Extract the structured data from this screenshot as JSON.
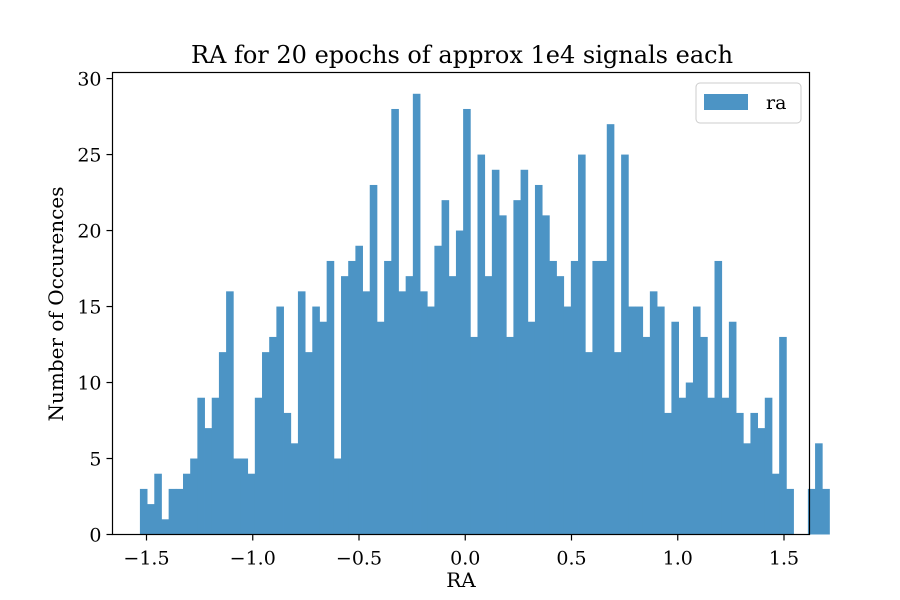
{
  "chart_data": {
    "type": "bar",
    "title": "RA for 20 epochs of approx 1e4 signals each",
    "xlabel": "RA",
    "ylabel": "Number of Occurences",
    "xlim": [
      -1.66,
      1.62
    ],
    "ylim": [
      0,
      30.4
    ],
    "xticks": [
      -1.5,
      -1.0,
      -0.5,
      0.0,
      0.5,
      1.0,
      1.5
    ],
    "xtick_labels": [
      "−1.5",
      "−1.0",
      "−0.5",
      "0.0",
      "0.5",
      "1.0",
      "1.5"
    ],
    "yticks": [
      0,
      5,
      10,
      15,
      20,
      25,
      30
    ],
    "ytick_labels": [
      "0",
      "5",
      "10",
      "15",
      "20",
      "25",
      "30"
    ],
    "grid": false,
    "legend": {
      "position": "top-right",
      "entries": [
        "ra"
      ]
    },
    "series": [
      {
        "name": "ra",
        "color": "#4c94c5",
        "bin_start": -1.531,
        "bin_width": 0.0338,
        "values": [
          3,
          2,
          4,
          1,
          3,
          3,
          4,
          5,
          9,
          7,
          9,
          12,
          16,
          5,
          5,
          4,
          9,
          12,
          13,
          15,
          8,
          6,
          16,
          12,
          15,
          14,
          18,
          5,
          17,
          18,
          19,
          16,
          23,
          14,
          18,
          28,
          16,
          17,
          29,
          16,
          15,
          19,
          22,
          17,
          20,
          28,
          13,
          25,
          17,
          24,
          21,
          13,
          22,
          24,
          14,
          23,
          21,
          18,
          17,
          15,
          18,
          25,
          12,
          18,
          18,
          27,
          12,
          25,
          15,
          15,
          13,
          16,
          15,
          8,
          14,
          9,
          10,
          15,
          13,
          9,
          18,
          9,
          14,
          8,
          6,
          8,
          7,
          9,
          4,
          13,
          3,
          0,
          0,
          3,
          6,
          3
        ]
      }
    ]
  }
}
